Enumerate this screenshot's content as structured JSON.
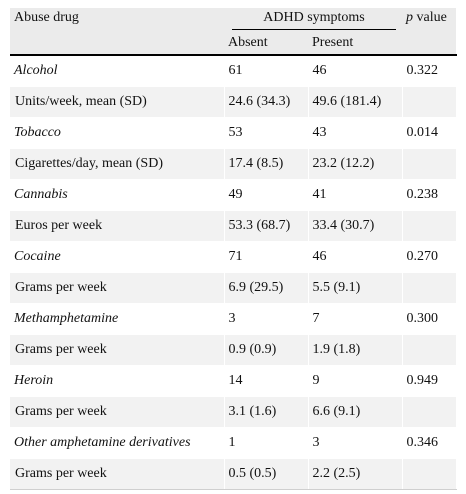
{
  "header": {
    "col_drug": "Abuse drug",
    "col_symptoms": "ADHD symptoms",
    "col_p_italic": "p",
    "col_p_rest": " value",
    "col_absent": "Absent",
    "col_present": "Present"
  },
  "rows": [
    {
      "label": "Alcohol",
      "absent": "61",
      "present": "46",
      "p": "0.322"
    },
    {
      "label": "Units/week, mean (SD)",
      "absent": "24.6 (34.3)",
      "present": "49.6 (181.4)",
      "p": ""
    },
    {
      "label": "Tobacco",
      "absent": "53",
      "present": "43",
      "p": "0.014"
    },
    {
      "label": "Cigarettes/day, mean (SD)",
      "absent": "17.4 (8.5)",
      "present": "23.2 (12.2)",
      "p": ""
    },
    {
      "label": "Cannabis",
      "absent": "49",
      "present": "41",
      "p": "0.238"
    },
    {
      "label": "Euros per week",
      "absent": "53.3 (68.7)",
      "present": "33.4 (30.7)",
      "p": ""
    },
    {
      "label": "Cocaine",
      "absent": "71",
      "present": "46",
      "p": "0.270"
    },
    {
      "label": "Grams per week",
      "absent": "6.9 (29.5)",
      "present": "5.5 (9.1)",
      "p": ""
    },
    {
      "label": "Methamphetamine",
      "absent": "3",
      "present": "7",
      "p": "0.300"
    },
    {
      "label": "Grams per week",
      "absent": "0.9 (0.9)",
      "present": "1.9 (1.8)",
      "p": ""
    },
    {
      "label": "Heroin",
      "absent": "14",
      "present": "9",
      "p": "0.949"
    },
    {
      "label": "Grams per week",
      "absent": "3.1 (1.6)",
      "present": "6.6 (9.1)",
      "p": ""
    },
    {
      "label": "Other amphetamine derivatives",
      "absent": "1",
      "present": "3",
      "p": "0.346"
    },
    {
      "label": "Grams per week",
      "absent": "0.5 (0.5)",
      "present": "2.2 (2.5)",
      "p": ""
    }
  ]
}
